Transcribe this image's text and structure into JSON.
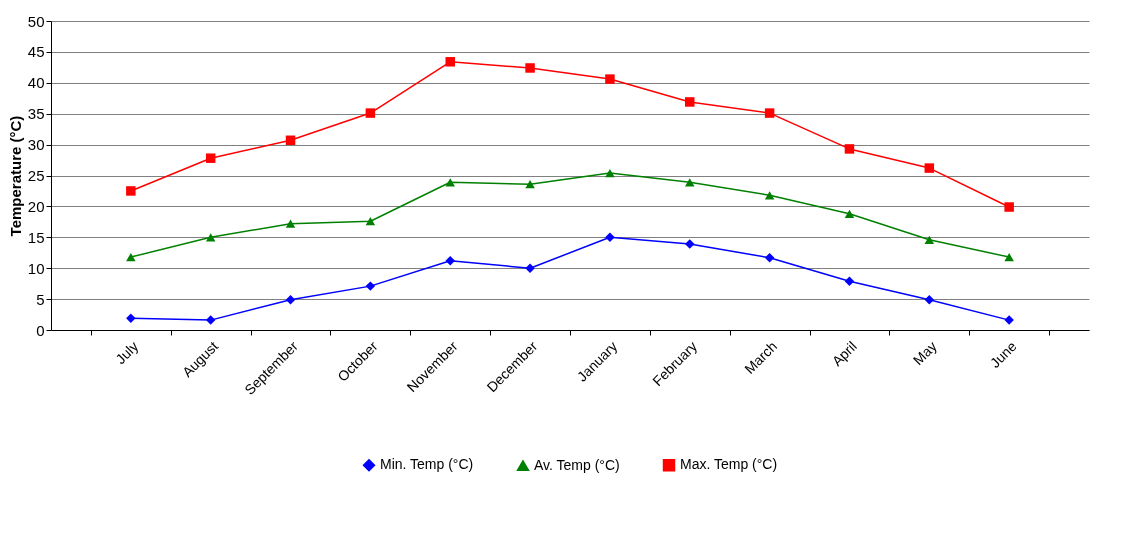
{
  "chart_data": {
    "type": "line",
    "ylabel": "Temperature (°C)",
    "categories": [
      "July",
      "August",
      "September",
      "October",
      "November",
      "December",
      "January",
      "February",
      "March",
      "April",
      "May",
      "June"
    ],
    "series": [
      {
        "name": "Min. Temp (°C)",
        "color": "#0000ff",
        "marker": "diamond",
        "values": [
          1.9,
          1.6,
          4.9,
          7.1,
          11.2,
          10.0,
          15.0,
          13.9,
          11.7,
          7.9,
          4.9,
          1.6
        ]
      },
      {
        "name": "Av. Temp (°C)",
        "color": "#008000",
        "marker": "triangle",
        "values": [
          11.8,
          15.0,
          17.2,
          17.6,
          23.9,
          23.6,
          25.4,
          23.9,
          21.8,
          18.8,
          14.6,
          11.8
        ]
      },
      {
        "name": "Max. Temp (°C)",
        "color": "#ff0000",
        "marker": "square",
        "values": [
          22.5,
          27.8,
          30.7,
          35.1,
          43.4,
          42.4,
          40.6,
          36.9,
          35.1,
          29.3,
          26.2,
          19.9
        ]
      }
    ],
    "ylim": [
      0,
      50
    ],
    "yticks": [
      0,
      5,
      10,
      15,
      20,
      25,
      30,
      35,
      40,
      45,
      50
    ],
    "grid": "y",
    "legend": "bottom"
  }
}
